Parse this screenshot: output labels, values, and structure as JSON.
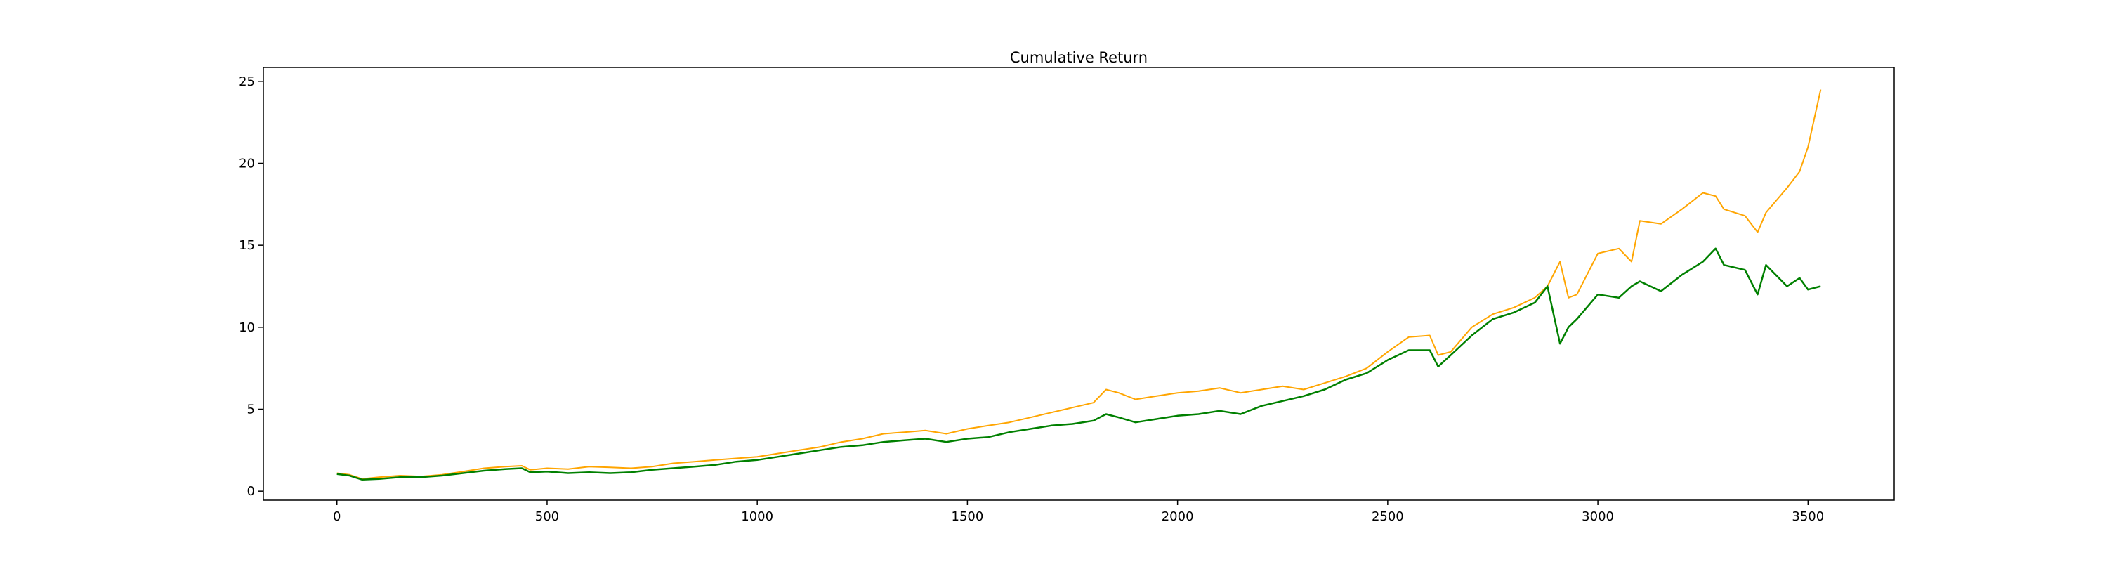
{
  "chart_data": {
    "type": "line",
    "title": "Cumulative Return",
    "xlabel": "",
    "ylabel": "",
    "xlim": [
      -175,
      3705
    ],
    "ylim": [
      -0.55,
      25.85
    ],
    "x_ticks": [
      0,
      500,
      1000,
      1500,
      2000,
      2500,
      3000,
      3500
    ],
    "y_ticks": [
      0,
      5,
      10,
      15,
      20,
      25
    ],
    "grid": false,
    "legend": "none",
    "series": [
      {
        "name": "orange-series",
        "color": "#FFA500",
        "x": [
          0,
          30,
          60,
          100,
          150,
          200,
          250,
          300,
          350,
          400,
          440,
          460,
          500,
          550,
          600,
          650,
          700,
          750,
          800,
          850,
          900,
          950,
          1000,
          1050,
          1100,
          1150,
          1200,
          1250,
          1300,
          1350,
          1400,
          1450,
          1500,
          1550,
          1600,
          1650,
          1700,
          1750,
          1800,
          1830,
          1860,
          1900,
          1950,
          2000,
          2050,
          2100,
          2150,
          2200,
          2250,
          2300,
          2350,
          2400,
          2450,
          2500,
          2550,
          2600,
          2620,
          2650,
          2700,
          2750,
          2800,
          2850,
          2880,
          2910,
          2930,
          2950,
          3000,
          3050,
          3080,
          3100,
          3150,
          3200,
          3250,
          3280,
          3300,
          3350,
          3380,
          3400,
          3450,
          3480,
          3500,
          3530
        ],
        "values": [
          1.1,
          1.0,
          0.75,
          0.85,
          0.95,
          0.9,
          1.0,
          1.2,
          1.4,
          1.5,
          1.55,
          1.3,
          1.4,
          1.35,
          1.5,
          1.45,
          1.4,
          1.5,
          1.7,
          1.8,
          1.9,
          2.0,
          2.1,
          2.3,
          2.5,
          2.7,
          3.0,
          3.2,
          3.5,
          3.6,
          3.7,
          3.5,
          3.8,
          4.0,
          4.2,
          4.5,
          4.8,
          5.1,
          5.4,
          6.2,
          6.0,
          5.6,
          5.8,
          6.0,
          6.1,
          6.3,
          6.0,
          6.2,
          6.4,
          6.2,
          6.6,
          7.0,
          7.5,
          8.5,
          9.4,
          9.5,
          8.3,
          8.5,
          10.0,
          10.8,
          11.2,
          11.8,
          12.5,
          14.0,
          11.8,
          12.0,
          14.5,
          14.8,
          14.0,
          16.5,
          16.3,
          17.2,
          18.2,
          18.0,
          17.2,
          16.8,
          15.8,
          17.0,
          18.5,
          19.5,
          21.0,
          24.5
        ]
      },
      {
        "name": "green-series",
        "color": "#008000",
        "x": [
          0,
          30,
          60,
          100,
          150,
          200,
          250,
          300,
          350,
          400,
          440,
          460,
          500,
          550,
          600,
          650,
          700,
          750,
          800,
          850,
          900,
          950,
          1000,
          1050,
          1100,
          1150,
          1200,
          1250,
          1300,
          1350,
          1400,
          1450,
          1500,
          1550,
          1600,
          1650,
          1700,
          1750,
          1800,
          1830,
          1860,
          1900,
          1950,
          2000,
          2050,
          2100,
          2150,
          2200,
          2250,
          2300,
          2350,
          2400,
          2450,
          2500,
          2550,
          2600,
          2620,
          2650,
          2700,
          2750,
          2800,
          2850,
          2880,
          2910,
          2930,
          2950,
          3000,
          3050,
          3080,
          3100,
          3150,
          3200,
          3250,
          3280,
          3300,
          3350,
          3380,
          3400,
          3450,
          3480,
          3500,
          3530
        ],
        "values": [
          1.05,
          0.95,
          0.7,
          0.75,
          0.85,
          0.85,
          0.95,
          1.1,
          1.25,
          1.35,
          1.4,
          1.15,
          1.2,
          1.1,
          1.15,
          1.1,
          1.15,
          1.3,
          1.4,
          1.5,
          1.6,
          1.8,
          1.9,
          2.1,
          2.3,
          2.5,
          2.7,
          2.8,
          3.0,
          3.1,
          3.2,
          3.0,
          3.2,
          3.3,
          3.6,
          3.8,
          4.0,
          4.1,
          4.3,
          4.7,
          4.5,
          4.2,
          4.4,
          4.6,
          4.7,
          4.9,
          4.7,
          5.2,
          5.5,
          5.8,
          6.2,
          6.8,
          7.2,
          8.0,
          8.6,
          8.6,
          7.6,
          8.3,
          9.5,
          10.5,
          10.9,
          11.5,
          12.5,
          9.0,
          10.0,
          10.5,
          12.0,
          11.8,
          12.5,
          12.8,
          12.2,
          13.2,
          14.0,
          14.8,
          13.8,
          13.5,
          12.0,
          13.8,
          12.5,
          13.0,
          12.3,
          12.5
        ]
      }
    ]
  }
}
